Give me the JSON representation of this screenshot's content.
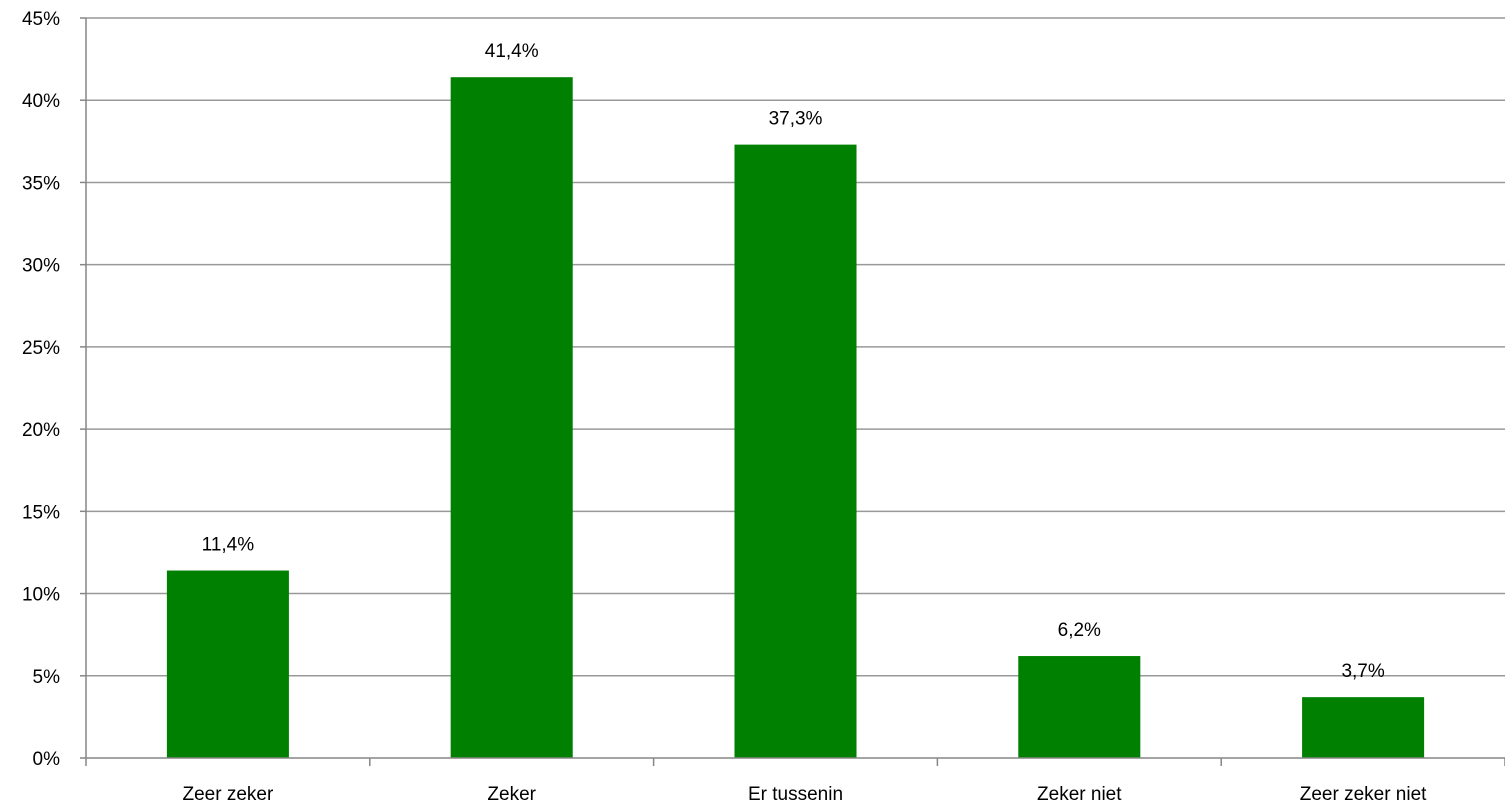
{
  "chart_data": {
    "type": "bar",
    "title": "",
    "xlabel": "",
    "ylabel": "",
    "categories": [
      "Zeer zeker",
      "Zeker",
      "Er tussenin",
      "Zeker niet",
      "Zeer zeker niet"
    ],
    "values": [
      11.4,
      41.4,
      37.3,
      6.2,
      3.7
    ],
    "data_labels": [
      "11,4%",
      "41,4%",
      "37,3%",
      "6,2%",
      "3,7%"
    ],
    "ylim": [
      0,
      45
    ],
    "y_ticks": [
      0,
      5,
      10,
      15,
      20,
      25,
      30,
      35,
      40,
      45
    ],
    "y_tick_labels": [
      "0%",
      "5%",
      "10%",
      "15%",
      "20%",
      "25%",
      "30%",
      "35%",
      "40%",
      "45%"
    ],
    "grid": true,
    "legend": "none",
    "bar_color": "#008000",
    "grid_color": "#999999"
  }
}
